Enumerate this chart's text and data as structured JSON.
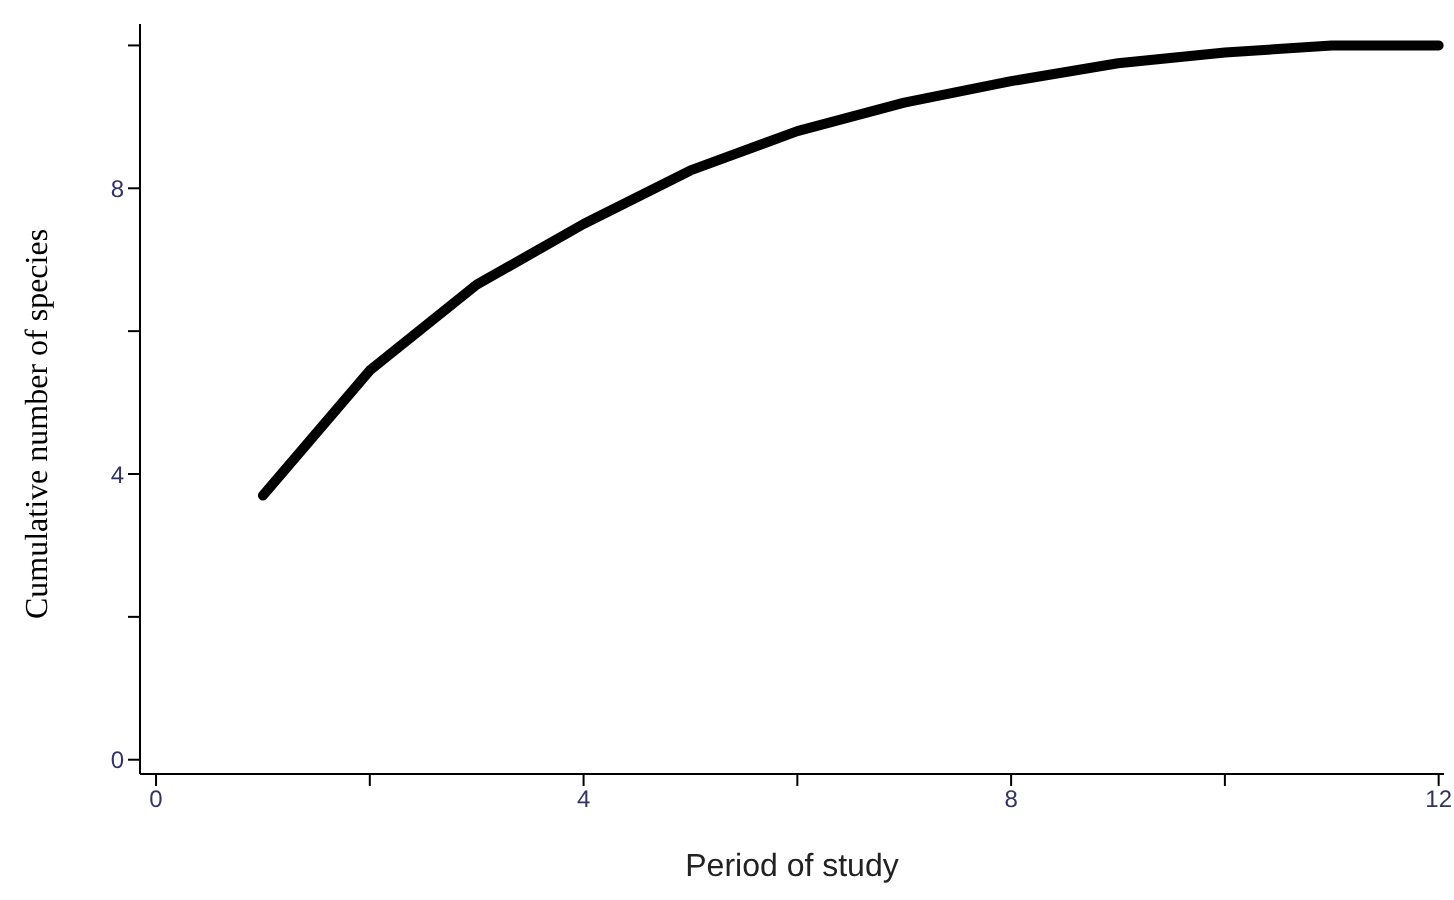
{
  "chart_data": {
    "type": "line",
    "xlabel": "Period of study",
    "ylabel": "Cumulative number of species",
    "x": [
      1,
      2,
      3,
      4,
      5,
      6,
      7,
      8,
      9,
      10,
      11,
      12
    ],
    "series": [
      {
        "color": "#000000",
        "values": [
          3.7,
          5.45,
          6.65,
          7.5,
          8.25,
          8.8,
          9.2,
          9.5,
          9.75,
          9.9,
          10.0,
          10.0
        ]
      }
    ],
    "xlim": [
      -0.15,
      12.05
    ],
    "ylim": [
      -0.2,
      10.3
    ],
    "xticks": [
      0,
      {
        "value": 2,
        "label": null
      },
      4,
      {
        "value": 6,
        "label": null
      },
      8,
      {
        "value": 10,
        "label": null
      },
      12
    ],
    "yticks": [
      0,
      {
        "value": 2,
        "label": null
      },
      4,
      {
        "value": 6,
        "label": null
      },
      8,
      {
        "value": 10,
        "label": null
      }
    ],
    "grid": false,
    "legend": false,
    "marker": "none",
    "line_style": "solid"
  }
}
